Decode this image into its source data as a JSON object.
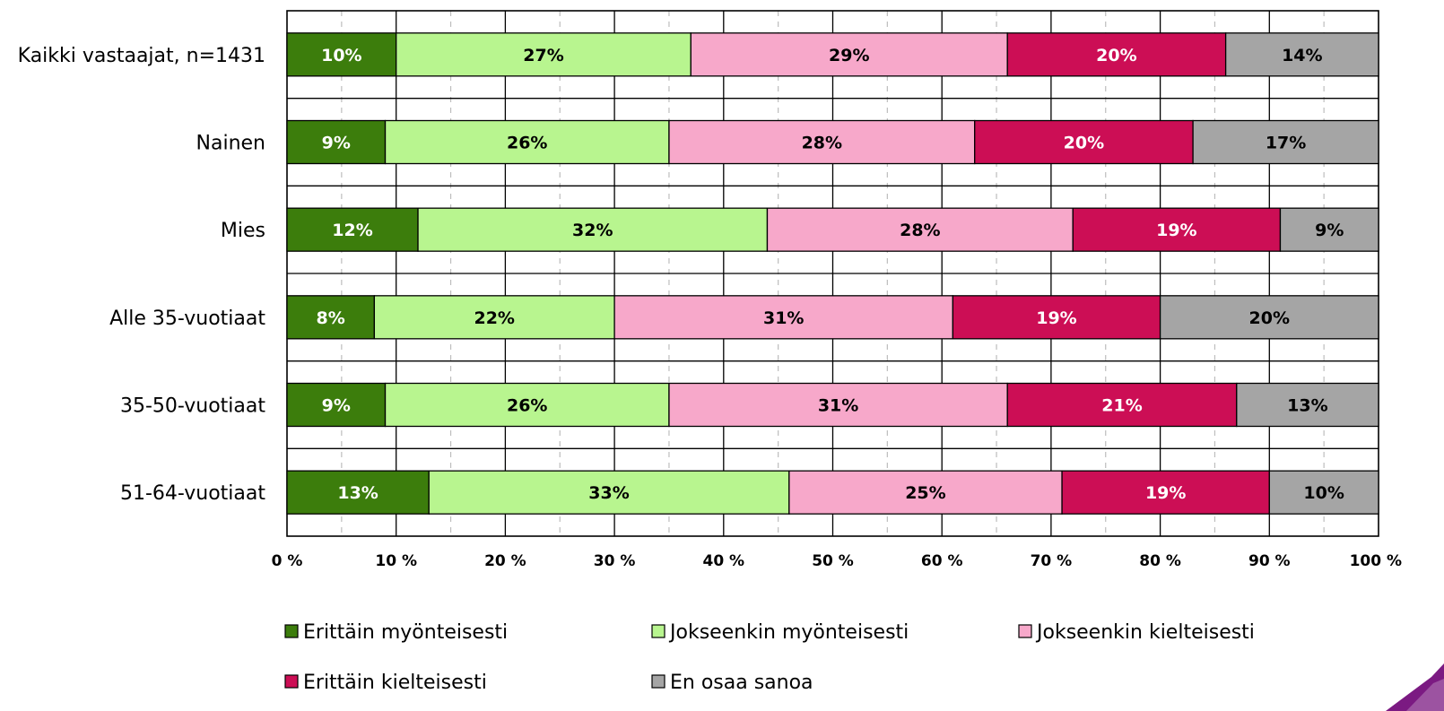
{
  "chart_data": {
    "type": "bar",
    "orientation": "horizontal",
    "stacked": true,
    "percent": true,
    "categories": [
      "Kaikki vastaajat, n=1431",
      "Nainen",
      "Mies",
      "Alle 35-vuotiaat",
      "35-50-vuotiaat",
      "51-64-vuotiaat"
    ],
    "series": [
      {
        "name": "Erittäin myönteisesti",
        "color": "#3c7d0c",
        "label_color": "#ffffff",
        "values": [
          10,
          9,
          12,
          8,
          9,
          13
        ],
        "labels": [
          "10%",
          "9%",
          "12%",
          "8%",
          "9%",
          "13%"
        ]
      },
      {
        "name": "Jokseenkin myönteisesti",
        "color": "#b8f58f",
        "label_color": "#000000",
        "values": [
          27,
          26,
          32,
          22,
          26,
          33
        ],
        "labels": [
          "27%",
          "26%",
          "32%",
          "22%",
          "26%",
          "33%"
        ]
      },
      {
        "name": "Jokseenkin kielteisesti",
        "color": "#f7a8ca",
        "label_color": "#000000",
        "values": [
          29,
          28,
          28,
          31,
          31,
          25
        ],
        "labels": [
          "29%",
          "28%",
          "28%",
          "31%",
          "31%",
          "25%"
        ]
      },
      {
        "name": "Erittäin kielteisesti",
        "color": "#cc0e55",
        "label_color": "#ffffff",
        "values": [
          20,
          20,
          19,
          19,
          21,
          19
        ],
        "labels": [
          "20%",
          "20%",
          "19%",
          "19%",
          "21%",
          "19%"
        ]
      },
      {
        "name": "En osaa sanoa",
        "color": "#a5a5a5",
        "label_color": "#000000",
        "values": [
          14,
          17,
          9,
          20,
          13,
          10
        ],
        "labels": [
          "14%",
          "17%",
          "9%",
          "20%",
          "13%",
          "10%"
        ]
      }
    ],
    "xlim": [
      0,
      100
    ],
    "xticks": [
      "0 %",
      "10 %",
      "20 %",
      "30 %",
      "40 %",
      "50 %",
      "60 %",
      "70 %",
      "80 %",
      "90 %",
      "100 %"
    ],
    "grid": {
      "major": "solid",
      "minor": "dashed"
    },
    "legend_position": "bottom"
  }
}
